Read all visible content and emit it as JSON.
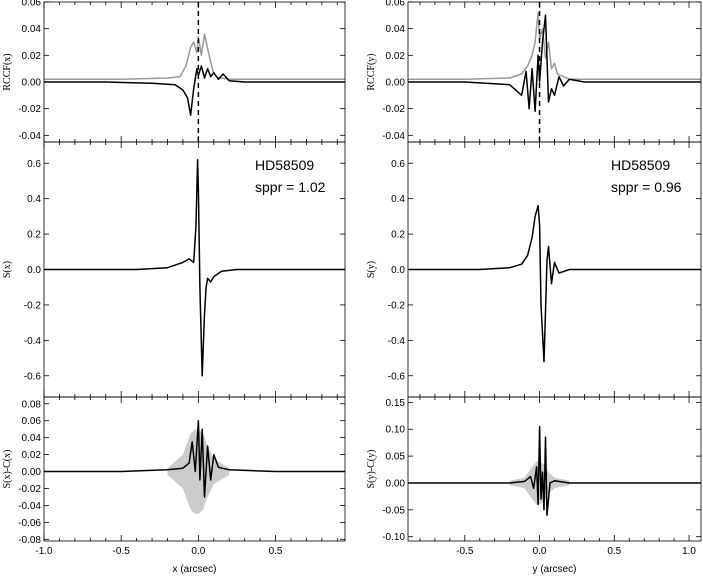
{
  "chart_data": [
    {
      "type": "line",
      "panel": "left-top",
      "ylabel_italic_part": "x",
      "ylabel": "RCCF(x)",
      "xlim": [
        -1.0,
        0.95
      ],
      "ylim": [
        -0.045,
        0.06
      ],
      "yticks": [
        -0.04,
        -0.02,
        0.0,
        0.02,
        0.04,
        0.06
      ],
      "ytick_labels": [
        "-0.04",
        "-0.02",
        "0.00",
        "0.02",
        "0.04",
        "0.06"
      ],
      "vline_x": 0,
      "series": [
        {
          "color": "#999999",
          "x": [
            -1.0,
            -0.5,
            -0.2,
            -0.12,
            -0.08,
            -0.05,
            -0.03,
            -0.01,
            0.0,
            0.02,
            0.04,
            0.06,
            0.08,
            0.1,
            0.12,
            0.15,
            0.2,
            0.5,
            0.95
          ],
          "y": [
            0.002,
            0.002,
            0.003,
            0.004,
            0.012,
            0.026,
            0.03,
            0.022,
            0.034,
            0.02,
            0.036,
            0.025,
            0.015,
            0.006,
            0.004,
            0.003,
            0.002,
            0.002,
            0.002
          ]
        },
        {
          "color": "#000000",
          "x": [
            -1.0,
            -0.6,
            -0.3,
            -0.15,
            -0.1,
            -0.07,
            -0.05,
            -0.03,
            -0.01,
            0.0,
            0.02,
            0.04,
            0.06,
            0.08,
            0.1,
            0.13,
            0.16,
            0.2,
            0.3,
            0.95
          ],
          "y": [
            0.0,
            0.0,
            -0.001,
            -0.002,
            -0.006,
            -0.012,
            -0.025,
            -0.005,
            0.01,
            0.005,
            0.012,
            0.003,
            0.01,
            0.004,
            0.007,
            0.002,
            0.006,
            0.001,
            0.0,
            0.0
          ]
        }
      ]
    },
    {
      "type": "line",
      "panel": "left-middle",
      "ylabel_italic_part": "x",
      "ylabel": "S(x)",
      "xlim": [
        -1.0,
        0.95
      ],
      "ylim": [
        -0.72,
        0.72
      ],
      "yticks": [
        -0.6,
        -0.4,
        -0.2,
        0.0,
        0.2,
        0.4,
        0.6
      ],
      "ytick_labels": [
        "-0.6",
        "-0.4",
        "-0.2",
        "0.0",
        "0.2",
        "0.4",
        "0.6"
      ],
      "annotation": [
        "HD58509",
        "sppr = 1.02"
      ],
      "series": [
        {
          "color": "#000000",
          "x": [
            -1.0,
            -0.4,
            -0.2,
            -0.1,
            -0.06,
            -0.03,
            -0.015,
            -0.005,
            0.0,
            0.01,
            0.025,
            0.04,
            0.05,
            0.06,
            0.08,
            0.1,
            0.15,
            0.25,
            0.95
          ],
          "y": [
            0.0,
            0.0,
            0.01,
            0.04,
            0.06,
            0.04,
            0.25,
            0.62,
            0.45,
            -0.1,
            -0.6,
            -0.25,
            -0.1,
            -0.05,
            -0.07,
            -0.04,
            -0.01,
            0.0,
            0.0
          ]
        }
      ]
    },
    {
      "type": "line",
      "panel": "left-bottom",
      "ylabel": "S(x)-C(x)",
      "xlabel": "x (arcsec)",
      "xlim": [
        -1.0,
        0.95
      ],
      "ylim": [
        -0.082,
        0.088
      ],
      "xticks": [
        -1.0,
        -0.5,
        0.0,
        0.5
      ],
      "xtick_labels": [
        "-1.0",
        "-0.5",
        "0.0",
        "0.5"
      ],
      "yticks": [
        -0.08,
        -0.06,
        -0.04,
        -0.02,
        0.0,
        0.02,
        0.04,
        0.06,
        0.08
      ],
      "ytick_labels": [
        "-0.08",
        "-0.06",
        "-0.04",
        "-0.02",
        "0.00",
        "0.02",
        "0.04",
        "0.06",
        "0.08"
      ],
      "envelope": {
        "color": "#cccccc",
        "x": [
          -0.2,
          -0.1,
          -0.05,
          -0.02,
          0.0,
          0.03,
          0.06,
          0.1,
          0.2
        ],
        "upper": [
          0.004,
          0.02,
          0.045,
          0.05,
          0.05,
          0.045,
          0.03,
          0.015,
          0.004
        ],
        "lower": [
          -0.004,
          -0.02,
          -0.045,
          -0.05,
          -0.05,
          -0.045,
          -0.03,
          -0.015,
          -0.004
        ]
      },
      "series": [
        {
          "color": "#000000",
          "x": [
            -1.0,
            -0.5,
            -0.2,
            -0.1,
            -0.06,
            -0.04,
            -0.02,
            0.0,
            0.01,
            0.025,
            0.04,
            0.06,
            0.08,
            0.1,
            0.13,
            0.2,
            0.5,
            0.95
          ],
          "y": [
            0.0,
            0.0,
            0.002,
            0.004,
            0.01,
            0.035,
            0.0,
            0.06,
            -0.01,
            0.05,
            -0.03,
            0.03,
            -0.01,
            0.02,
            0.005,
            0.002,
            0.0,
            0.0
          ]
        }
      ]
    },
    {
      "type": "line",
      "panel": "right-top",
      "ylabel_italic_part": "y",
      "ylabel": "RCCF(y)",
      "xlim": [
        -0.88,
        1.08
      ],
      "ylim": [
        -0.045,
        0.06
      ],
      "yticks": [
        -0.04,
        -0.02,
        0.0,
        0.02,
        0.04,
        0.06
      ],
      "ytick_labels": [
        "-0.04",
        "-0.02",
        "0.00",
        "0.02",
        "0.04",
        "0.06"
      ],
      "vline_x": 0,
      "series": [
        {
          "color": "#999999",
          "x": [
            -0.88,
            -0.5,
            -0.2,
            -0.12,
            -0.08,
            -0.05,
            -0.03,
            -0.01,
            0.0,
            0.02,
            0.04,
            0.06,
            0.08,
            0.1,
            0.12,
            0.16,
            0.2,
            0.5,
            1.08
          ],
          "y": [
            0.002,
            0.002,
            0.003,
            0.006,
            0.012,
            0.02,
            0.03,
            0.052,
            0.032,
            0.04,
            0.018,
            0.03,
            0.01,
            0.014,
            0.006,
            0.004,
            0.002,
            0.002,
            0.002
          ]
        },
        {
          "color": "#000000",
          "x": [
            -0.88,
            -0.5,
            -0.2,
            -0.12,
            -0.09,
            -0.07,
            -0.05,
            -0.03,
            -0.01,
            0.0,
            0.02,
            0.04,
            0.06,
            0.08,
            0.1,
            0.13,
            0.16,
            0.2,
            0.3,
            1.08
          ],
          "y": [
            0.0,
            0.0,
            -0.002,
            -0.01,
            0.008,
            -0.02,
            0.01,
            -0.022,
            0.02,
            0.0,
            0.03,
            0.05,
            -0.015,
            -0.005,
            -0.01,
            0.004,
            -0.003,
            0.002,
            0.0,
            0.0
          ]
        }
      ]
    },
    {
      "type": "line",
      "panel": "right-middle",
      "ylabel_italic_part": "y",
      "ylabel": "S(y)",
      "xlim": [
        -0.88,
        1.08
      ],
      "ylim": [
        -0.72,
        0.72
      ],
      "yticks": [
        -0.6,
        -0.4,
        -0.2,
        0.0,
        0.2,
        0.4,
        0.6
      ],
      "ytick_labels": [
        "-0.6",
        "-0.4",
        "-0.2",
        "0.0",
        "0.2",
        "0.4",
        "0.6"
      ],
      "annotation": [
        "HD58509",
        "sppr = 0.96"
      ],
      "series": [
        {
          "color": "#000000",
          "x": [
            -0.88,
            -0.4,
            -0.2,
            -0.12,
            -0.08,
            -0.05,
            -0.03,
            -0.01,
            0.0,
            0.01,
            0.03,
            0.05,
            0.06,
            0.08,
            0.1,
            0.13,
            0.2,
            0.3,
            1.08
          ],
          "y": [
            0.0,
            0.0,
            0.01,
            0.03,
            0.08,
            0.18,
            0.3,
            0.36,
            0.25,
            -0.2,
            -0.52,
            0.05,
            0.13,
            -0.08,
            0.04,
            -0.02,
            0.0,
            0.0,
            0.0
          ]
        }
      ]
    },
    {
      "type": "line",
      "panel": "right-bottom",
      "ylabel": "S(y)-C(y)",
      "xlabel": "y (arcsec)",
      "xlim": [
        -0.88,
        1.08
      ],
      "ylim": [
        -0.108,
        0.16
      ],
      "xticks": [
        -0.5,
        0.0,
        0.5,
        1.0
      ],
      "xtick_labels": [
        "-0.5",
        "0.0",
        "0.5",
        "1.0"
      ],
      "yticks": [
        -0.1,
        -0.05,
        0.0,
        0.05,
        0.1,
        0.15
      ],
      "ytick_labels": [
        "-0.10",
        "-0.05",
        "0.00",
        "0.05",
        "0.10",
        "0.15"
      ],
      "envelope": {
        "color": "#cccccc",
        "x": [
          -0.2,
          -0.1,
          -0.05,
          -0.02,
          0.0,
          0.03,
          0.06,
          0.1,
          0.2
        ],
        "upper": [
          0.004,
          0.01,
          0.03,
          0.04,
          0.04,
          0.035,
          0.02,
          0.01,
          0.004
        ],
        "lower": [
          -0.004,
          -0.01,
          -0.03,
          -0.04,
          -0.04,
          -0.035,
          -0.02,
          -0.01,
          -0.004
        ]
      },
      "series": [
        {
          "color": "#000000",
          "x": [
            -0.88,
            -0.5,
            -0.2,
            -0.1,
            -0.06,
            -0.04,
            -0.02,
            -0.01,
            0.0,
            0.01,
            0.02,
            0.03,
            0.04,
            0.05,
            0.07,
            0.1,
            0.2,
            0.5,
            1.08
          ],
          "y": [
            0.0,
            0.0,
            0.0,
            0.003,
            0.012,
            -0.01,
            0.03,
            -0.04,
            0.105,
            -0.03,
            0.02,
            -0.05,
            0.085,
            -0.06,
            0.0,
            0.004,
            0.0,
            0.0,
            0.0
          ]
        }
      ]
    }
  ]
}
